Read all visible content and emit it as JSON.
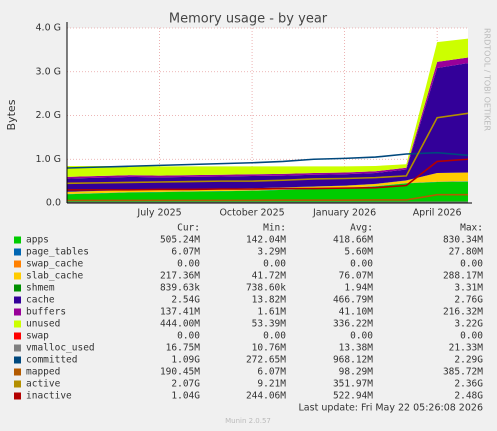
{
  "chart_data": {
    "type": "area",
    "title": "Memory usage - by year",
    "y_label": "Bytes",
    "side_text": "RRDTOOL / TOBI OETIKER",
    "footer": "Last update: Fri May 22 05:26:08 2026",
    "version": "Munin 2.0.57",
    "x": [
      "2025-04",
      "2025-05",
      "2025-06",
      "2025-07",
      "2025-08",
      "2025-09",
      "2025-10",
      "2025-11",
      "2025-12",
      "2026-01",
      "2026-02",
      "2026-03",
      "2026-04",
      "2026-05"
    ],
    "xlim": [
      "2025-04",
      "2026-05"
    ],
    "xticks": [
      {
        "value": "2025-07",
        "label": "July 2025"
      },
      {
        "value": "2025-10",
        "label": "October 2025"
      },
      {
        "value": "2026-01",
        "label": "January 2026"
      },
      {
        "value": "2026-04",
        "label": "April 2026"
      }
    ],
    "ylim": [
      0,
      4
    ],
    "yticks": [
      {
        "value": 0,
        "label": "0.0"
      },
      {
        "value": 1,
        "label": "1.0 G"
      },
      {
        "value": 2,
        "label": "2.0 G"
      },
      {
        "value": 3,
        "label": "3.0 G"
      },
      {
        "value": 4,
        "label": "4.0 G"
      }
    ],
    "grid": true,
    "series": [
      {
        "name": "apps",
        "color": "#00cc00",
        "style": "area",
        "values": [
          0.2,
          0.22,
          0.24,
          0.25,
          0.26,
          0.27,
          0.28,
          0.3,
          0.32,
          0.34,
          0.38,
          0.45,
          0.48,
          0.49
        ]
      },
      {
        "name": "page_tables",
        "color": "#0066b3",
        "style": "area",
        "values": [
          0.005,
          0.005,
          0.005,
          0.005,
          0.005,
          0.005,
          0.005,
          0.005,
          0.005,
          0.005,
          0.005,
          0.005,
          0.006,
          0.006
        ]
      },
      {
        "name": "swap_cache",
        "color": "#ff8000",
        "style": "area",
        "values": [
          0,
          0,
          0,
          0,
          0,
          0,
          0,
          0,
          0,
          0,
          0,
          0,
          0,
          0
        ]
      },
      {
        "name": "slab_cache",
        "color": "#ffcc00",
        "style": "area",
        "values": [
          0.05,
          0.05,
          0.05,
          0.05,
          0.05,
          0.05,
          0.05,
          0.05,
          0.05,
          0.05,
          0.05,
          0.06,
          0.2,
          0.2
        ]
      },
      {
        "name": "shmem",
        "color": "#008f00",
        "style": "area",
        "values": [
          0.001,
          0.001,
          0.001,
          0.001,
          0.001,
          0.001,
          0.001,
          0.001,
          0.001,
          0.001,
          0.001,
          0.001,
          0.001,
          0.001
        ]
      },
      {
        "name": "cache",
        "color": "#330099",
        "style": "area",
        "values": [
          0.3,
          0.3,
          0.3,
          0.28,
          0.28,
          0.28,
          0.28,
          0.27,
          0.27,
          0.26,
          0.25,
          0.25,
          2.4,
          2.5
        ]
      },
      {
        "name": "buffers",
        "color": "#990099",
        "style": "area",
        "values": [
          0.04,
          0.04,
          0.04,
          0.04,
          0.04,
          0.04,
          0.04,
          0.04,
          0.04,
          0.04,
          0.04,
          0.04,
          0.14,
          0.13
        ]
      },
      {
        "name": "unused",
        "color": "#ccff00",
        "style": "area",
        "values": [
          0.25,
          0.23,
          0.21,
          0.21,
          0.2,
          0.19,
          0.18,
          0.17,
          0.15,
          0.14,
          0.12,
          0.08,
          0.45,
          0.43
        ]
      },
      {
        "name": "swap",
        "color": "#ff0000",
        "style": "area",
        "values": [
          0,
          0,
          0,
          0,
          0,
          0,
          0,
          0,
          0,
          0,
          0,
          0,
          0,
          0
        ]
      },
      {
        "name": "vmalloc_used",
        "color": "#808080",
        "style": "line",
        "values": [
          0.013,
          0.013,
          0.013,
          0.013,
          0.013,
          0.013,
          0.013,
          0.013,
          0.013,
          0.013,
          0.013,
          0.013,
          0.016,
          0.016
        ]
      },
      {
        "name": "committed",
        "color": "#00487d",
        "style": "line",
        "values": [
          0.8,
          0.82,
          0.84,
          0.86,
          0.88,
          0.9,
          0.92,
          0.95,
          1.0,
          1.02,
          1.05,
          1.12,
          1.15,
          1.09
        ]
      },
      {
        "name": "mapped",
        "color": "#b35a00",
        "style": "line",
        "values": [
          0.06,
          0.06,
          0.06,
          0.06,
          0.06,
          0.06,
          0.06,
          0.065,
          0.065,
          0.065,
          0.07,
          0.07,
          0.19,
          0.19
        ]
      },
      {
        "name": "active",
        "color": "#b38f00",
        "style": "line",
        "values": [
          0.45,
          0.46,
          0.47,
          0.48,
          0.49,
          0.5,
          0.5,
          0.52,
          0.55,
          0.56,
          0.58,
          0.62,
          1.95,
          2.05
        ]
      },
      {
        "name": "inactive",
        "color": "#b30000",
        "style": "line",
        "values": [
          0.3,
          0.3,
          0.3,
          0.31,
          0.31,
          0.32,
          0.32,
          0.33,
          0.33,
          0.34,
          0.35,
          0.4,
          0.95,
          1.0
        ]
      }
    ],
    "legend_stats": {
      "headers": [
        "Cur:",
        "Min:",
        "Avg:",
        "Max:"
      ],
      "rows": [
        [
          "505.24M",
          "142.04M",
          "418.66M",
          "830.34M"
        ],
        [
          "6.07M",
          "3.29M",
          "5.60M",
          "27.80M"
        ],
        [
          "0.00",
          "0.00",
          "0.00",
          "0.00"
        ],
        [
          "217.36M",
          "41.72M",
          "76.07M",
          "288.17M"
        ],
        [
          "839.63k",
          "738.60k",
          "1.94M",
          "3.31M"
        ],
        [
          "2.54G",
          "13.82M",
          "466.79M",
          "2.76G"
        ],
        [
          "137.41M",
          "1.61M",
          "41.10M",
          "216.32M"
        ],
        [
          "444.00M",
          "53.39M",
          "336.22M",
          "3.22G"
        ],
        [
          "0.00",
          "0.00",
          "0.00",
          "0.00"
        ],
        [
          "16.75M",
          "10.76M",
          "13.38M",
          "21.33M"
        ],
        [
          "1.09G",
          "272.65M",
          "968.12M",
          "2.29G"
        ],
        [
          "190.45M",
          "6.07M",
          "98.29M",
          "385.72M"
        ],
        [
          "2.07G",
          "9.21M",
          "351.97M",
          "2.36G"
        ],
        [
          "1.04G",
          "244.06M",
          "522.94M",
          "2.48G"
        ]
      ]
    }
  }
}
